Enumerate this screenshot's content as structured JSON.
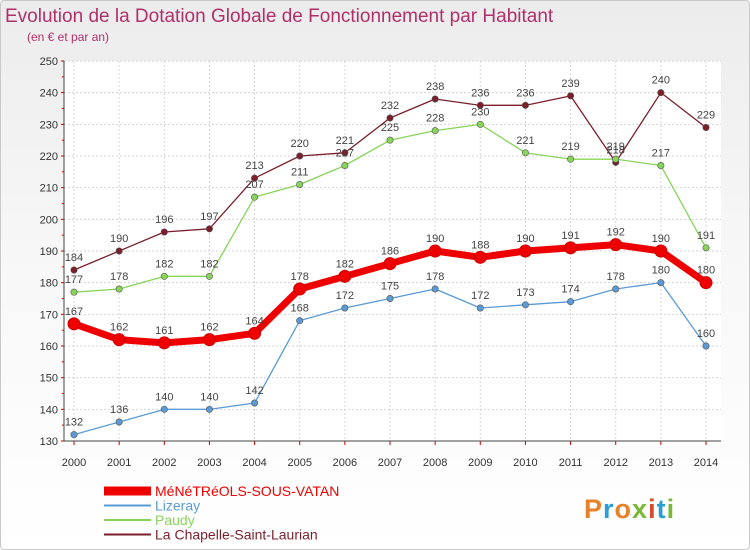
{
  "chart_data": {
    "type": "line",
    "title": "Evolution de la Dotation Globale de Fonctionnement par Habitant",
    "subtitle": "(en € et par an)",
    "x": [
      "2000",
      "2001",
      "2002",
      "2003",
      "2004",
      "2005",
      "2006",
      "2007",
      "2008",
      "2009",
      "2010",
      "2011",
      "2012",
      "2013",
      "2014"
    ],
    "y_ticks": [
      "130",
      "140",
      "150",
      "160",
      "170",
      "180",
      "190",
      "200",
      "210",
      "220",
      "230",
      "240",
      "250"
    ],
    "ylim": [
      130,
      250
    ],
    "grid": true,
    "legend_position": "bottom-left",
    "series": [
      {
        "name": "La Chapelle-Saint-Laurian",
        "color": "#7a1f2b",
        "values": [
          184,
          190,
          196,
          197,
          213,
          220,
          221,
          232,
          238,
          236,
          236,
          239,
          218,
          240,
          229
        ],
        "labels": [
          "184",
          "190",
          "196",
          "197",
          "213",
          "220",
          "221",
          "232",
          "238",
          "236",
          "236",
          "239",
          "218",
          "240",
          "229"
        ]
      },
      {
        "name": "Paudy",
        "color": "#88d45a",
        "values": [
          177,
          178,
          182,
          182,
          207,
          211,
          217,
          225,
          228,
          230,
          221,
          219,
          219,
          217,
          191
        ],
        "labels": [
          "177",
          "178",
          "182",
          "182",
          "207",
          "211",
          "217",
          "225",
          "228",
          "230",
          "221",
          "219",
          "219",
          "217",
          "191"
        ]
      },
      {
        "name": "Lizeray",
        "color": "#5b9bd5",
        "values": [
          132,
          136,
          140,
          140,
          142,
          168,
          172,
          175,
          178,
          172,
          173,
          174,
          178,
          180,
          160
        ],
        "labels": [
          "132",
          "136",
          "140",
          "140",
          "142",
          "168",
          "172",
          "175",
          "178",
          "172",
          "173",
          "174",
          "178",
          "180",
          "160"
        ]
      },
      {
        "name": "MéNéTRéOLS-SOUS-VATAN",
        "color": "#ee0000",
        "values": [
          167,
          162,
          161,
          162,
          164,
          178,
          182,
          186,
          190,
          188,
          190,
          191,
          192,
          190,
          180
        ],
        "labels": [
          "167",
          "162",
          "161",
          "162",
          "164",
          "178",
          "182",
          "186",
          "190",
          "188",
          "190",
          "191",
          "192",
          "190",
          "180"
        ]
      }
    ],
    "legend": [
      {
        "name": "MéNéTRéOLS-SOUS-VATAN",
        "color": "#ee0000"
      },
      {
        "name": "Lizeray",
        "color": "#5b9bd5"
      },
      {
        "name": "Paudy",
        "color": "#88d45a"
      },
      {
        "name": "La Chapelle-Saint-Laurian",
        "color": "#7a1f2b"
      }
    ]
  },
  "logo": {
    "text": "Proxiti"
  }
}
